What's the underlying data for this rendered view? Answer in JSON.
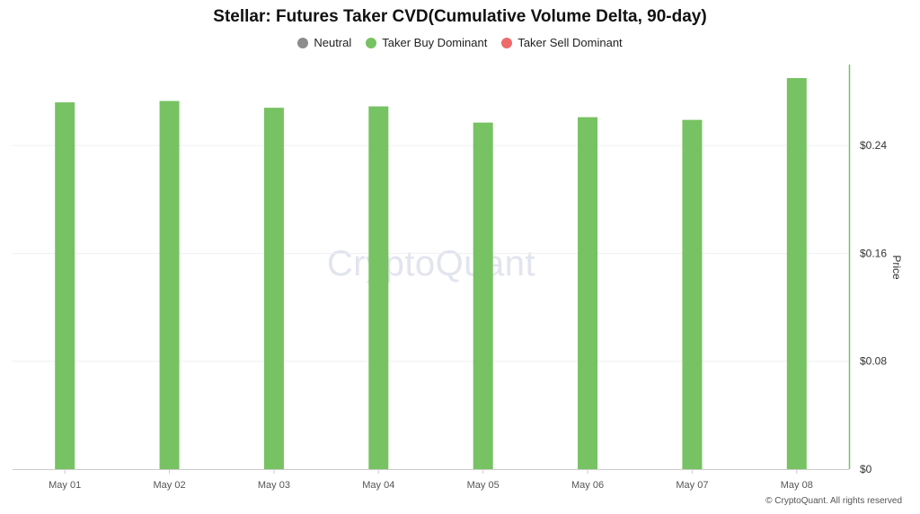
{
  "chart_data": {
    "type": "bar",
    "title": "Stellar: Futures Taker CVD(Cumulative Volume Delta, 90-day)",
    "categories": [
      "May 01",
      "May 02",
      "May 03",
      "May 04",
      "May 05",
      "May 06",
      "May 07",
      "May 08"
    ],
    "series": [
      {
        "name": "Taker Buy Dominant",
        "color": "#77c262",
        "values": [
          0.272,
          0.273,
          0.268,
          0.269,
          0.257,
          0.261,
          0.259,
          0.29
        ]
      }
    ],
    "legend": [
      {
        "label": "Neutral",
        "color": "#8c8c8c"
      },
      {
        "label": "Taker Buy Dominant",
        "color": "#77c262"
      },
      {
        "label": "Taker Sell Dominant",
        "color": "#ee6b6b"
      }
    ],
    "ylabel": "Price",
    "y_axis_position": "right",
    "ylim": [
      0,
      0.3
    ],
    "yticks": [
      0,
      0.08,
      0.16,
      0.24
    ],
    "ytick_labels": [
      "$0",
      "$0.08",
      "$0.16",
      "$0.24"
    ],
    "grid": true,
    "legend_position": "top-center"
  },
  "watermark": "CryptoQuant",
  "copyright": "© CryptoQuant. All rights reserved"
}
